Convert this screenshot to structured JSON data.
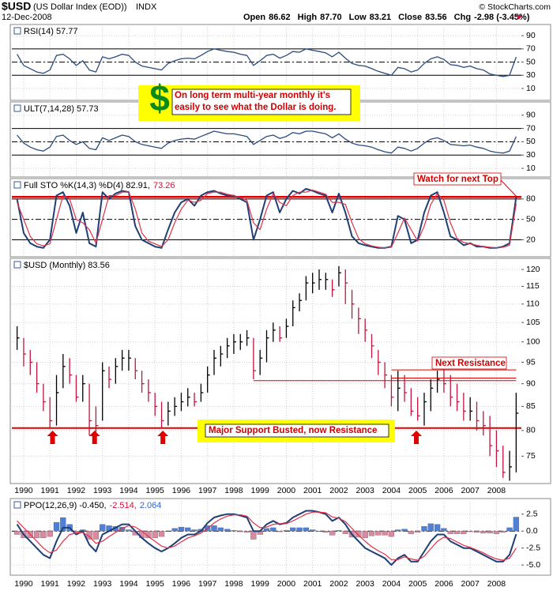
{
  "header": {
    "symbol": "$USD",
    "name": "(US Dollar Index (EOD))",
    "exchange": "INDX",
    "date": "12-Dec-2008",
    "source": "© StockCharts.com",
    "quote": [
      [
        "Open",
        "86.62"
      ],
      [
        "High",
        "87.70"
      ],
      [
        "Low",
        "83.21"
      ],
      [
        "Close",
        "83.56"
      ],
      [
        "Chg",
        "-2.98 (-3.45%)"
      ]
    ]
  },
  "annotations": {
    "dollar": "$",
    "note": [
      "On long term multi-year monthly it's",
      "easily to see what the Dollar is doing."
    ],
    "watch": "Watch for next Top",
    "resistance": "Next Resistance",
    "support": "Major Support Busted, now Resistance"
  },
  "chart_data": {
    "type": "stock",
    "x": [
      1989.75,
      1990,
      1990.25,
      1990.5,
      1990.75,
      1991,
      1991.25,
      1991.5,
      1991.75,
      1992,
      1992.25,
      1992.5,
      1992.75,
      1993,
      1993.25,
      1993.5,
      1993.75,
      1994,
      1994.25,
      1994.5,
      1994.75,
      1995,
      1995.25,
      1995.5,
      1995.75,
      1996,
      1996.25,
      1996.5,
      1996.75,
      1997,
      1997.25,
      1997.5,
      1997.75,
      1998,
      1998.25,
      1998.5,
      1998.75,
      1999,
      1999.25,
      1999.5,
      1999.75,
      2000,
      2000.25,
      2000.5,
      2000.75,
      2001,
      2001.25,
      2001.5,
      2001.75,
      2002,
      2002.25,
      2002.5,
      2002.75,
      2003,
      2003.25,
      2003.5,
      2003.75,
      2004,
      2004.25,
      2004.5,
      2004.75,
      2005,
      2005.25,
      2005.5,
      2005.75,
      2006,
      2006.25,
      2006.5,
      2006.75,
      2007,
      2007.25,
      2007.5,
      2007.75,
      2008,
      2008.25,
      2008.5,
      2008.75
    ],
    "xlim": [
      1989.55,
      2008.95
    ],
    "xticks": [
      1990,
      1991,
      1992,
      1993,
      1994,
      1995,
      1996,
      1997,
      1998,
      1999,
      2000,
      2001,
      2002,
      2003,
      2004,
      2005,
      2006,
      2007,
      2008
    ],
    "grid": true,
    "panels": [
      {
        "type": "line",
        "label": [
          "RSI(14) 57.77"
        ],
        "label_colors": [
          "#000"
        ],
        "ylim": [
          -8,
          107
        ],
        "yticks": [
          10,
          30,
          50,
          70,
          90
        ],
        "solid_lines": [
          30,
          70
        ],
        "dashed_lines": [
          50
        ],
        "series": [
          {
            "color": "#2b4c7e",
            "width": 1.3,
            "values": [
              62,
              45,
              40,
              35,
              33,
              38,
              60,
              62,
              55,
              45,
              52,
              38,
              35,
              58,
              55,
              58,
              62,
              60,
              50,
              44,
              42,
              40,
              38,
              48,
              52,
              55,
              56,
              55,
              60,
              66,
              70,
              68,
              66,
              65,
              62,
              60,
              45,
              52,
              60,
              62,
              56,
              60,
              66,
              65,
              70,
              68,
              66,
              64,
              58,
              65,
              56,
              48,
              45,
              44,
              40,
              36,
              33,
              30,
              42,
              40,
              35,
              38,
              48,
              55,
              58,
              54,
              46,
              45,
              42,
              44,
              40,
              38,
              32,
              30,
              28,
              30,
              57.77
            ]
          }
        ]
      },
      {
        "type": "line",
        "label": [
          "ULT(7,14,28) 57.73"
        ],
        "label_colors": [
          "#000"
        ],
        "ylim": [
          -3,
          110
        ],
        "yticks": [
          10,
          30,
          50,
          70,
          90
        ],
        "solid_lines": [
          30,
          70
        ],
        "dashed_lines": [
          50
        ],
        "series": [
          {
            "color": "#2b4c7e",
            "width": 1.3,
            "values": [
              60,
              48,
              42,
              38,
              36,
              42,
              58,
              60,
              52,
              46,
              50,
              40,
              38,
              56,
              52,
              56,
              60,
              58,
              50,
              46,
              44,
              42,
              40,
              48,
              52,
              54,
              55,
              54,
              58,
              62,
              66,
              64,
              62,
              62,
              60,
              58,
              46,
              52,
              58,
              60,
              55,
              58,
              64,
              62,
              66,
              66,
              64,
              62,
              56,
              62,
              54,
              48,
              45,
              44,
              42,
              38,
              35,
              33,
              42,
              40,
              36,
              40,
              48,
              54,
              56,
              52,
              46,
              45,
              44,
              45,
              42,
              40,
              36,
              34,
              33,
              36,
              57.73
            ]
          }
        ]
      },
      {
        "type": "line",
        "label": [
          "Full STO %K(14,3) %D(4) 82.91,",
          "73.26"
        ],
        "label_colors": [
          "#000",
          "#d0103a"
        ],
        "ylim": [
          -5,
          110
        ],
        "yticks": [
          20,
          50,
          80
        ],
        "solid_lines": [
          20,
          80
        ],
        "dashed_lines": [
          50
        ],
        "levels": [
          {
            "value": 83,
            "color": "#e00000",
            "width": 2.5,
            "from": 1989.55,
            "to": 2008.95
          }
        ],
        "series": [
          {
            "color": "#1f3f75",
            "width": 2,
            "values": [
              80,
              30,
              15,
              10,
              8,
              20,
              85,
              90,
              70,
              30,
              60,
              15,
              10,
              90,
              80,
              88,
              92,
              90,
              40,
              20,
              15,
              10,
              8,
              35,
              60,
              75,
              80,
              70,
              85,
              90,
              92,
              88,
              85,
              85,
              80,
              75,
              20,
              50,
              85,
              90,
              60,
              80,
              92,
              88,
              95,
              92,
              88,
              85,
              60,
              88,
              60,
              25,
              15,
              12,
              10,
              8,
              8,
              10,
              55,
              50,
              15,
              20,
              60,
              85,
              90,
              60,
              25,
              20,
              12,
              15,
              10,
              10,
              8,
              8,
              10,
              15,
              82.91
            ]
          },
          {
            "color": "#e0304a",
            "width": 1.2,
            "values": [
              75,
              50,
              25,
              14,
              11,
              14,
              50,
              85,
              80,
              50,
              45,
              35,
              15,
              50,
              85,
              85,
              90,
              90,
              65,
              30,
              18,
              14,
              10,
              20,
              45,
              65,
              78,
              75,
              78,
              88,
              90,
              90,
              87,
              85,
              82,
              78,
              45,
              35,
              65,
              88,
              75,
              70,
              85,
              90,
              90,
              93,
              90,
              87,
              75,
              75,
              72,
              45,
              22,
              14,
              11,
              9,
              8,
              9,
              30,
              52,
              35,
              18,
              40,
              72,
              88,
              78,
              45,
              22,
              16,
              14,
              12,
              10,
              9,
              8,
              9,
              12,
              73.26
            ]
          }
        ]
      },
      {
        "type": "ohlc",
        "log": true,
        "label": [
          "$USD (Monthly) 83.56"
        ],
        "label_colors": [
          "#000"
        ],
        "ylim": [
          70,
          123.4
        ],
        "yticks": [
          75,
          80,
          85,
          90,
          95,
          100,
          105,
          110,
          115,
          120
        ],
        "color_up": "#000000",
        "color_down": "#c0143c",
        "high": [
          104,
          101,
          98,
          95,
          90,
          87,
          92,
          97,
          96,
          92,
          92,
          90,
          85,
          95,
          94,
          96,
          98,
          98,
          96,
          93,
          91,
          88,
          86,
          86,
          87,
          88,
          89,
          88,
          90,
          94,
          98,
          99,
          101,
          102,
          102,
          103,
          101,
          98,
          103,
          105,
          104,
          106,
          111,
          113,
          118,
          119,
          120,
          119,
          117,
          121,
          120,
          114,
          109,
          106,
          102,
          98,
          95,
          92,
          93,
          92,
          89,
          87,
          88,
          91,
          93,
          94,
          92,
          90,
          88,
          87,
          86,
          84,
          83,
          80,
          77,
          76,
          88
        ],
        "low": [
          98,
          94,
          92,
          88,
          84,
          80.5,
          81,
          89,
          90,
          86,
          86,
          79,
          79,
          82,
          89,
          90,
          93,
          93,
          91,
          88,
          86,
          83,
          80.5,
          81,
          83,
          84,
          85,
          85,
          86,
          88,
          92,
          94,
          96,
          97,
          98,
          99,
          91,
          92,
          95,
          100,
          100,
          101,
          104,
          108,
          111,
          113,
          114,
          114,
          112,
          115,
          110,
          106,
          102,
          100,
          96,
          92,
          89,
          85,
          84,
          86,
          83,
          82,
          81,
          84,
          88,
          88,
          85,
          84,
          82,
          82,
          80,
          79,
          75,
          73,
          71,
          70.5,
          72
        ],
        "close": [
          101,
          97,
          95,
          90,
          86,
          82,
          88,
          94,
          92,
          87,
          90,
          82,
          81,
          93,
          91,
          94,
          96,
          96,
          93,
          90,
          88,
          85,
          82,
          84,
          85,
          86,
          87,
          86,
          88,
          92,
          96,
          97,
          99,
          100,
          100,
          101,
          93,
          96,
          101,
          103,
          101,
          104,
          109,
          111,
          116,
          116,
          117,
          117,
          114,
          119,
          116,
          110,
          106,
          103,
          99,
          95,
          92,
          87,
          89,
          88,
          84,
          83,
          86,
          89,
          91,
          90,
          87,
          86,
          84,
          84,
          82,
          81,
          77,
          76,
          72,
          73,
          83.56
        ],
        "levels": [
          {
            "value": 80.5,
            "color": "#e00000",
            "width": 2,
            "from": 1989.55,
            "to": 2008.95
          },
          {
            "value": 90.7,
            "color": "#e00000",
            "width": 1,
            "from": 1998.75,
            "to": 2008.75
          },
          {
            "value": 91.3,
            "color": "#e00000",
            "width": 1,
            "from": 2004.0,
            "to": 2008.75
          },
          {
            "value": 93.2,
            "color": "#e00000",
            "width": 1,
            "from": 2004.0,
            "to": 2008.75
          }
        ],
        "arrows_x": [
          1991.1,
          1992.7,
          1995.3,
          2004.95
        ],
        "arrow_color": "#e00000"
      },
      {
        "type": "line",
        "label": [
          "PPO(12,26,9) -0.450,",
          "-2.514,",
          "2.064"
        ],
        "label_colors": [
          "#000",
          "#d0103a",
          "#3366cc"
        ],
        "ylim": [
          -6.5,
          4.8
        ],
        "yticks": [
          2.5,
          {
            "value": 0,
            "label": "0.0"
          },
          -2.5,
          {
            "value": -5,
            "label": "-5.0"
          }
        ],
        "dashed_lines": [
          0
        ],
        "histogram": [
          -0.5,
          -1.0,
          -1.0,
          -1.0,
          -1.0,
          -0.8,
          1.3,
          2.0,
          1.0,
          -0.2,
          0.2,
          -1.2,
          -1.2,
          1.0,
          0.8,
          0.7,
          0.6,
          0.2,
          -0.6,
          -1.0,
          -1.0,
          -1.0,
          -0.8,
          0.0,
          0.4,
          0.6,
          0.5,
          0.2,
          0.3,
          0.8,
          0.8,
          0.5,
          0.3,
          0.1,
          -0.1,
          -0.2,
          -1.2,
          -0.5,
          0.4,
          0.5,
          -0.1,
          0.1,
          0.5,
          0.5,
          0.5,
          0.2,
          0.0,
          -0.2,
          -0.6,
          0.1,
          -0.4,
          -0.9,
          -0.9,
          -1.0,
          -0.7,
          -0.6,
          -0.6,
          -0.8,
          0.2,
          0.3,
          -0.4,
          -0.2,
          0.7,
          1.1,
          1.0,
          0.4,
          -0.4,
          -0.4,
          -0.4,
          -0.1,
          -0.2,
          -0.3,
          -0.3,
          -0.4,
          -0.2,
          0.5,
          2.064
        ],
        "color_pos": "#4f7fd6",
        "color_neg": "#d98aa0",
        "series": [
          {
            "color": "#1f3f75",
            "width": 2,
            "values": [
              1.0,
              -0.5,
              -1.5,
              -2.5,
              -3.5,
              -4.0,
              -1.5,
              0.5,
              0.5,
              -0.5,
              0.0,
              -2.0,
              -3.0,
              -0.5,
              0.0,
              0.5,
              1.0,
              1.0,
              0.0,
              -1.0,
              -1.8,
              -2.5,
              -3.0,
              -2.5,
              -1.8,
              -1.0,
              -0.5,
              -0.5,
              0.0,
              1.2,
              2.0,
              2.3,
              2.5,
              2.5,
              2.3,
              2.0,
              0.0,
              0.0,
              1.0,
              1.5,
              1.0,
              1.2,
              2.0,
              2.5,
              3.0,
              3.0,
              2.8,
              2.5,
              1.5,
              2.0,
              1.0,
              -0.5,
              -1.5,
              -2.5,
              -3.0,
              -3.5,
              -4.0,
              -5.0,
              -4.0,
              -3.5,
              -4.5,
              -4.5,
              -3.0,
              -1.5,
              -0.5,
              -0.5,
              -1.5,
              -2.0,
              -2.5,
              -2.5,
              -3.0,
              -3.5,
              -4.0,
              -4.5,
              -4.5,
              -3.5,
              -0.45
            ]
          },
          {
            "color": "#e0304a",
            "width": 1.2,
            "values": [
              1.5,
              0.5,
              -0.5,
              -1.5,
              -2.5,
              -3.2,
              -2.8,
              -1.5,
              -0.5,
              -0.3,
              -0.2,
              -0.8,
              -1.8,
              -1.5,
              -0.8,
              -0.2,
              0.4,
              0.8,
              0.6,
              0.0,
              -0.8,
              -1.5,
              -2.2,
              -2.5,
              -2.2,
              -1.6,
              -1.0,
              -0.7,
              -0.3,
              0.4,
              1.2,
              1.8,
              2.2,
              2.4,
              2.4,
              2.2,
              1.2,
              0.5,
              0.6,
              1.0,
              1.1,
              1.1,
              1.5,
              2.0,
              2.5,
              2.8,
              2.8,
              2.7,
              2.1,
              1.9,
              1.4,
              0.4,
              -0.6,
              -1.5,
              -2.3,
              -2.9,
              -3.4,
              -4.2,
              -4.2,
              -3.8,
              -4.1,
              -4.3,
              -3.7,
              -2.6,
              -1.5,
              -0.9,
              -1.1,
              -1.6,
              -2.1,
              -2.4,
              -2.8,
              -3.2,
              -3.7,
              -4.1,
              -4.3,
              -4.0,
              -2.514
            ]
          }
        ]
      }
    ]
  }
}
